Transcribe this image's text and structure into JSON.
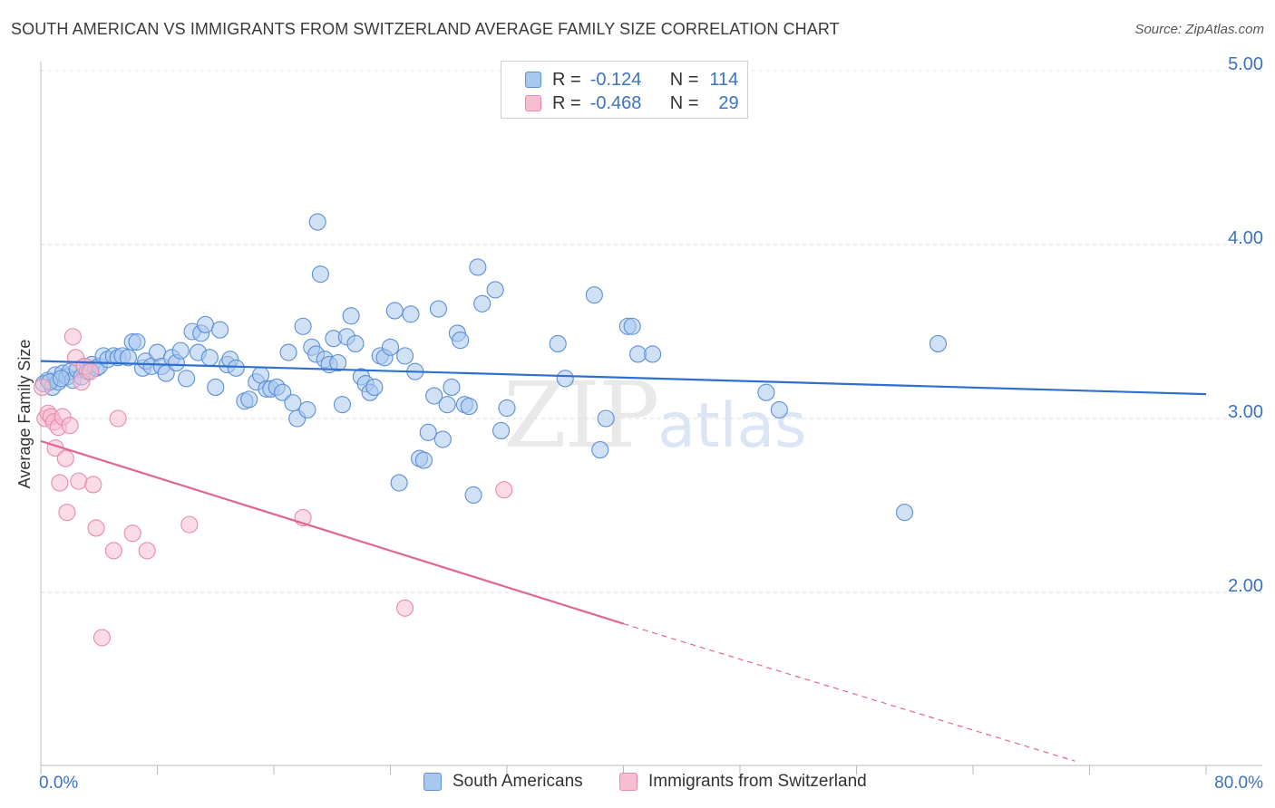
{
  "header": {
    "title": "SOUTH AMERICAN VS IMMIGRANTS FROM SWITZERLAND AVERAGE FAMILY SIZE CORRELATION CHART",
    "source": "Source: ZipAtlas.com"
  },
  "watermark": {
    "zip": "ZIP",
    "atlas": "atlas"
  },
  "legend_stats": {
    "rows": [
      {
        "r_label": "R =",
        "r_value": "-0.124",
        "n_label": "N =",
        "n_value": "114"
      },
      {
        "r_label": "R =",
        "r_value": "-0.468",
        "n_label": "N =",
        "n_value": "29"
      }
    ]
  },
  "colors": {
    "blue_fill": "#a9c8ef",
    "blue_stroke": "#5b8fd6",
    "blue_line": "#2f6fcf",
    "pink_fill": "#f7bdd0",
    "pink_stroke": "#e98aa8",
    "pink_line": "#e06693",
    "axis_text": "#3a73c2"
  },
  "chart_data": {
    "type": "scatter",
    "title": "SOUTH AMERICAN VS IMMIGRANTS FROM SWITZERLAND AVERAGE FAMILY SIZE CORRELATION CHART",
    "xlabel": "",
    "ylabel": "Average Family Size",
    "xlim": [
      0,
      80
    ],
    "ylim": [
      1.0,
      5.1
    ],
    "x_tick_labels": [
      "0.0%",
      "80.0%"
    ],
    "y_ticks": [
      2.0,
      3.0,
      4.0,
      5.0
    ],
    "y_tick_labels": [
      "2.00",
      "3.00",
      "4.00",
      "5.00"
    ],
    "grid": true,
    "series": [
      {
        "name": "South Americans",
        "color": "#a9c8ef",
        "trend": {
          "x": [
            0,
            80
          ],
          "y": [
            3.33,
            3.14
          ],
          "dashed_from": null
        },
        "points": [
          [
            0.2,
            3.2
          ],
          [
            0.5,
            3.22
          ],
          [
            0.8,
            3.18
          ],
          [
            1.0,
            3.25
          ],
          [
            1.2,
            3.21
          ],
          [
            1.5,
            3.26
          ],
          [
            1.8,
            3.24
          ],
          [
            2.0,
            3.27
          ],
          [
            2.2,
            3.22
          ],
          [
            2.5,
            3.28
          ],
          [
            2.8,
            3.24
          ],
          [
            3.0,
            3.3
          ],
          [
            3.2,
            3.27
          ],
          [
            3.5,
            3.31
          ],
          [
            3.8,
            3.29
          ],
          [
            4.0,
            3.3
          ],
          [
            4.3,
            3.36
          ],
          [
            4.6,
            3.34
          ],
          [
            5.0,
            3.36
          ],
          [
            5.3,
            3.35
          ],
          [
            5.6,
            3.36
          ],
          [
            6.0,
            3.35
          ],
          [
            6.3,
            3.44
          ],
          [
            6.6,
            3.44
          ],
          [
            7.0,
            3.29
          ],
          [
            7.2,
            3.33
          ],
          [
            7.6,
            3.3
          ],
          [
            8.0,
            3.38
          ],
          [
            8.3,
            3.3
          ],
          [
            8.6,
            3.26
          ],
          [
            9.0,
            3.35
          ],
          [
            9.3,
            3.32
          ],
          [
            9.6,
            3.39
          ],
          [
            10.0,
            3.23
          ],
          [
            10.4,
            3.5
          ],
          [
            10.8,
            3.38
          ],
          [
            11.0,
            3.49
          ],
          [
            11.3,
            3.54
          ],
          [
            11.6,
            3.35
          ],
          [
            12.0,
            3.18
          ],
          [
            12.3,
            3.51
          ],
          [
            12.8,
            3.31
          ],
          [
            13.0,
            3.34
          ],
          [
            13.4,
            3.29
          ],
          [
            14.0,
            3.1
          ],
          [
            14.3,
            3.11
          ],
          [
            14.8,
            3.21
          ],
          [
            15.1,
            3.25
          ],
          [
            15.5,
            3.17
          ],
          [
            15.8,
            3.17
          ],
          [
            16.2,
            3.18
          ],
          [
            16.6,
            3.15
          ],
          [
            17.0,
            3.38
          ],
          [
            17.3,
            3.09
          ],
          [
            17.6,
            3.0
          ],
          [
            18.0,
            3.53
          ],
          [
            18.3,
            3.05
          ],
          [
            18.6,
            3.41
          ],
          [
            18.9,
            3.37
          ],
          [
            19.0,
            4.13
          ],
          [
            19.2,
            3.83
          ],
          [
            19.5,
            3.34
          ],
          [
            19.8,
            3.31
          ],
          [
            20.1,
            3.46
          ],
          [
            20.4,
            3.32
          ],
          [
            20.7,
            3.08
          ],
          [
            21.0,
            3.47
          ],
          [
            21.3,
            3.59
          ],
          [
            21.6,
            3.43
          ],
          [
            22.0,
            3.24
          ],
          [
            22.3,
            3.2
          ],
          [
            22.6,
            3.15
          ],
          [
            22.9,
            3.18
          ],
          [
            23.3,
            3.36
          ],
          [
            23.6,
            3.35
          ],
          [
            24.0,
            3.41
          ],
          [
            24.3,
            3.62
          ],
          [
            24.6,
            2.63
          ],
          [
            25.0,
            3.36
          ],
          [
            25.4,
            3.6
          ],
          [
            25.7,
            3.27
          ],
          [
            26.0,
            2.77
          ],
          [
            26.3,
            2.76
          ],
          [
            26.6,
            2.92
          ],
          [
            27.0,
            3.13
          ],
          [
            27.3,
            3.63
          ],
          [
            27.6,
            2.88
          ],
          [
            27.9,
            3.08
          ],
          [
            28.2,
            3.18
          ],
          [
            28.6,
            3.49
          ],
          [
            28.8,
            3.45
          ],
          [
            29.1,
            3.08
          ],
          [
            29.4,
            3.07
          ],
          [
            29.7,
            2.56
          ],
          [
            30.0,
            3.87
          ],
          [
            30.3,
            3.66
          ],
          [
            31.2,
            3.74
          ],
          [
            31.6,
            2.93
          ],
          [
            32.0,
            3.06
          ],
          [
            35.5,
            3.43
          ],
          [
            36.0,
            3.23
          ],
          [
            38.0,
            3.71
          ],
          [
            38.4,
            2.82
          ],
          [
            38.8,
            3.0
          ],
          [
            40.3,
            3.53
          ],
          [
            40.6,
            3.53
          ],
          [
            41.0,
            3.37
          ],
          [
            42.0,
            3.37
          ],
          [
            49.8,
            3.15
          ],
          [
            50.7,
            3.05
          ],
          [
            59.3,
            2.46
          ],
          [
            61.6,
            3.43
          ],
          [
            0.6,
            3.21
          ],
          [
            1.4,
            3.23
          ]
        ]
      },
      {
        "name": "Immigrants from Switzerland",
        "color": "#f7bdd0",
        "trend": {
          "x": [
            0,
            40
          ],
          "y": [
            2.87,
            1.82
          ],
          "dashed_to": [
            71,
            1.03
          ]
        },
        "points": [
          [
            0.1,
            3.18
          ],
          [
            0.3,
            3.0
          ],
          [
            0.5,
            3.03
          ],
          [
            0.7,
            3.01
          ],
          [
            0.9,
            2.98
          ],
          [
            1.0,
            2.83
          ],
          [
            1.2,
            2.95
          ],
          [
            1.3,
            2.63
          ],
          [
            1.5,
            3.01
          ],
          [
            1.7,
            2.77
          ],
          [
            1.8,
            2.46
          ],
          [
            2.0,
            2.96
          ],
          [
            2.2,
            3.47
          ],
          [
            2.4,
            3.35
          ],
          [
            2.6,
            2.64
          ],
          [
            2.8,
            3.21
          ],
          [
            3.0,
            3.3
          ],
          [
            3.4,
            3.27
          ],
          [
            3.6,
            2.62
          ],
          [
            3.8,
            2.37
          ],
          [
            4.2,
            1.74
          ],
          [
            5.0,
            2.24
          ],
          [
            5.3,
            3.0
          ],
          [
            6.3,
            2.34
          ],
          [
            7.3,
            2.24
          ],
          [
            10.2,
            2.39
          ],
          [
            18.0,
            2.43
          ],
          [
            25.0,
            1.91
          ],
          [
            31.8,
            2.59
          ]
        ]
      }
    ]
  },
  "bottom_legend": {
    "items": [
      "South Americans",
      "Immigrants from Switzerland"
    ]
  }
}
